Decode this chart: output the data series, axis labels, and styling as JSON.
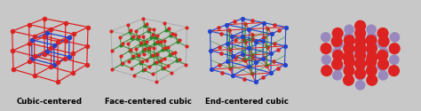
{
  "background_color": "#c8c8c8",
  "label_color": "#000000",
  "label_fontsize": 6.2,
  "label_fontweight": "bold",
  "fig_width": 4.74,
  "fig_height": 1.25,
  "dpi": 100,
  "panel1_label": "Cubic-centered",
  "panel2_label": "Face-centered cubic",
  "panel3_label": "End-centered cubic",
  "red_color": "#dd2222",
  "blue_color": "#2244cc",
  "green_color": "#228822",
  "purple_color": "#9988bb",
  "edge_color_p1": "#dd2222",
  "frame_color": "#aaaaaa"
}
